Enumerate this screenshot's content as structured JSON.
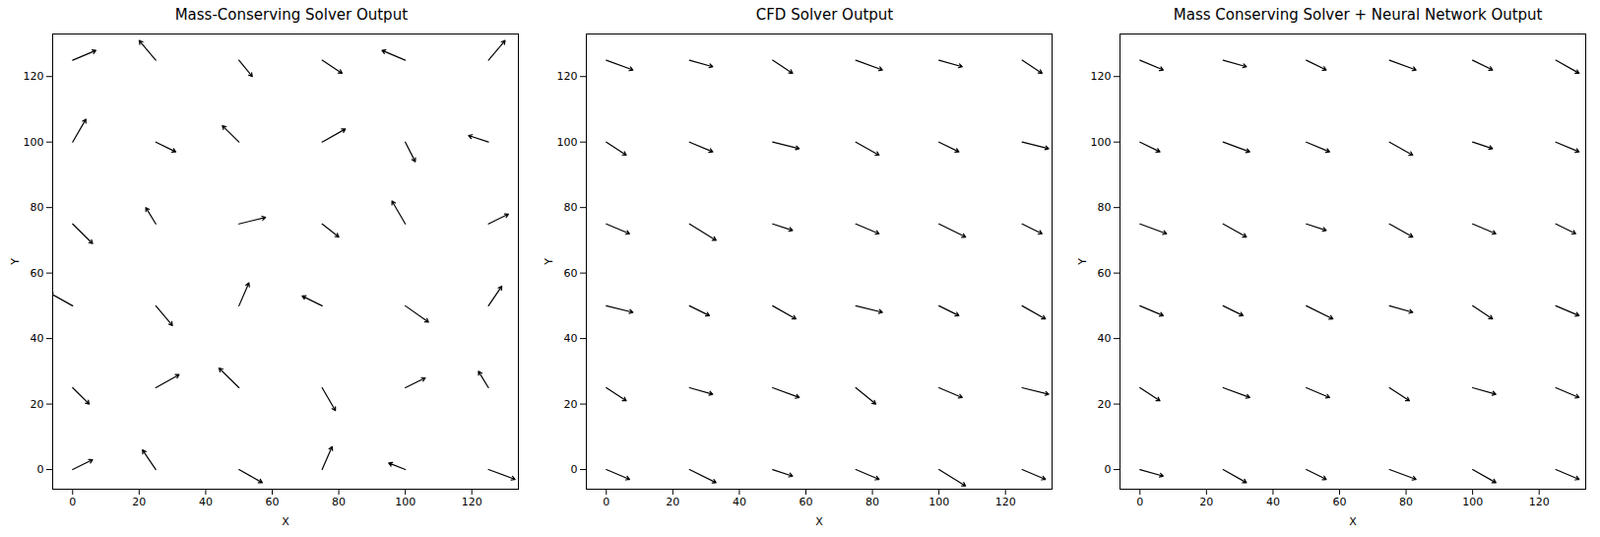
{
  "chart_data": [
    {
      "type": "quiver",
      "title": "Mass-Conserving Solver Output",
      "x_label": "X",
      "y_label": "Y",
      "xlim": [
        -6,
        134
      ],
      "ylim": [
        -6,
        133
      ],
      "xticks": [
        0,
        20,
        40,
        60,
        80,
        100,
        120
      ],
      "yticks": [
        0,
        20,
        40,
        60,
        80,
        100,
        120
      ],
      "color": "#000000",
      "x": [
        0,
        25,
        50,
        75,
        100,
        125,
        0,
        25,
        50,
        75,
        100,
        125,
        0,
        25,
        50,
        75,
        100,
        125,
        0,
        25,
        50,
        75,
        100,
        125,
        0,
        25,
        50,
        75,
        100,
        125,
        0,
        25,
        50,
        75,
        100,
        125
      ],
      "y": [
        0,
        0,
        0,
        0,
        0,
        0,
        25,
        25,
        25,
        25,
        25,
        25,
        50,
        50,
        50,
        50,
        50,
        50,
        75,
        75,
        75,
        75,
        75,
        75,
        100,
        100,
        100,
        100,
        100,
        100,
        125,
        125,
        125,
        125,
        125,
        125
      ],
      "u": [
        6,
        -4,
        7,
        3,
        -5,
        8,
        5,
        7,
        -6,
        4,
        6,
        -3,
        -7,
        5,
        3,
        -6,
        7,
        4,
        6,
        -3,
        8,
        5,
        -4,
        6,
        4,
        6,
        -5,
        7,
        3,
        -6,
        7,
        -5,
        4,
        6,
        -7,
        5
      ],
      "v": [
        3,
        6,
        -4,
        7,
        2,
        -3,
        -5,
        4,
        6,
        -7,
        3,
        5,
        4,
        -6,
        7,
        3,
        -5,
        6,
        -6,
        5,
        2,
        -4,
        7,
        3,
        7,
        -3,
        5,
        4,
        -6,
        2,
        3,
        6,
        -5,
        -4,
        3,
        6
      ]
    },
    {
      "type": "quiver",
      "title": "CFD Solver Output",
      "x_label": "X",
      "y_label": "Y",
      "xlim": [
        -6,
        134
      ],
      "ylim": [
        -6,
        133
      ],
      "xticks": [
        0,
        20,
        40,
        60,
        80,
        100,
        120
      ],
      "yticks": [
        0,
        20,
        40,
        60,
        80,
        100,
        120
      ],
      "color": "#000000",
      "x": [
        0,
        25,
        50,
        75,
        100,
        125,
        0,
        25,
        50,
        75,
        100,
        125,
        0,
        25,
        50,
        75,
        100,
        125,
        0,
        25,
        50,
        75,
        100,
        125,
        0,
        25,
        50,
        75,
        100,
        125,
        0,
        25,
        50,
        75,
        100,
        125
      ],
      "y": [
        0,
        0,
        0,
        0,
        0,
        0,
        25,
        25,
        25,
        25,
        25,
        25,
        50,
        50,
        50,
        50,
        50,
        50,
        75,
        75,
        75,
        75,
        75,
        75,
        100,
        100,
        100,
        100,
        100,
        100,
        125,
        125,
        125,
        125,
        125,
        125
      ],
      "u": [
        7,
        8,
        6,
        7,
        8,
        7,
        6,
        7,
        8,
        6,
        7,
        8,
        8,
        6,
        7,
        8,
        6,
        7,
        7,
        8,
        6,
        7,
        8,
        6,
        6,
        7,
        8,
        7,
        6,
        8,
        8,
        7,
        6,
        8,
        7,
        6
      ],
      "v": [
        -3,
        -4,
        -2,
        -3,
        -5,
        -3,
        -4,
        -2,
        -3,
        -5,
        -3,
        -2,
        -2,
        -3,
        -4,
        -2,
        -3,
        -4,
        -3,
        -5,
        -2,
        -3,
        -4,
        -3,
        -4,
        -3,
        -2,
        -4,
        -3,
        -2,
        -3,
        -2,
        -4,
        -3,
        -2,
        -4
      ]
    },
    {
      "type": "quiver",
      "title": "Mass Conserving Solver + Neural Network Output",
      "x_label": "X",
      "y_label": "Y",
      "xlim": [
        -6,
        134
      ],
      "ylim": [
        -6,
        133
      ],
      "xticks": [
        0,
        20,
        40,
        60,
        80,
        100,
        120
      ],
      "yticks": [
        0,
        20,
        40,
        60,
        80,
        100,
        120
      ],
      "color": "#000000",
      "x": [
        0,
        25,
        50,
        75,
        100,
        125,
        0,
        25,
        50,
        75,
        100,
        125,
        0,
        25,
        50,
        75,
        100,
        125,
        0,
        25,
        50,
        75,
        100,
        125,
        0,
        25,
        50,
        75,
        100,
        125,
        0,
        25,
        50,
        75,
        100,
        125
      ],
      "y": [
        0,
        0,
        0,
        0,
        0,
        0,
        25,
        25,
        25,
        25,
        25,
        25,
        50,
        50,
        50,
        50,
        50,
        50,
        75,
        75,
        75,
        75,
        75,
        75,
        100,
        100,
        100,
        100,
        100,
        100,
        125,
        125,
        125,
        125,
        125,
        125
      ],
      "u": [
        7,
        7,
        6,
        8,
        7,
        7,
        6,
        8,
        7,
        6,
        7,
        7,
        7,
        6,
        8,
        7,
        6,
        7,
        8,
        7,
        6,
        7,
        7,
        6,
        6,
        8,
        7,
        7,
        6,
        7,
        7,
        7,
        6,
        8,
        6,
        7
      ],
      "v": [
        -2,
        -4,
        -3,
        -3,
        -4,
        -3,
        -4,
        -3,
        -3,
        -4,
        -2,
        -3,
        -3,
        -3,
        -4,
        -2,
        -4,
        -3,
        -3,
        -4,
        -2,
        -4,
        -3,
        -3,
        -3,
        -3,
        -3,
        -4,
        -2,
        -3,
        -3,
        -2,
        -3,
        -3,
        -3,
        -4
      ]
    }
  ]
}
